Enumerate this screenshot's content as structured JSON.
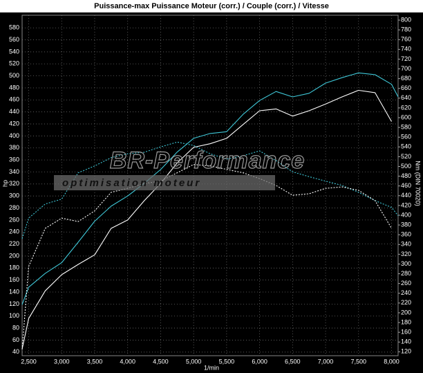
{
  "chart_data": {
    "type": "line",
    "title": "Puissance-max Puissance Moteur (corr.) / Couple (corr.) / Vitesse",
    "xlabel": "1/min",
    "ylabel": "hp",
    "y2label": "Nm (DIN 70020)",
    "annotations": [
      "BR-Performance",
      "optimisation moteur"
    ],
    "grid": true,
    "x": [
      2400,
      2500,
      2750,
      3000,
      3250,
      3500,
      3750,
      4000,
      4250,
      4500,
      4750,
      5000,
      5250,
      5500,
      5750,
      6000,
      6250,
      6500,
      6750,
      7000,
      7250,
      7500,
      7750,
      8000,
      8100
    ],
    "xlim": [
      2400,
      8100
    ],
    "xticks": [
      {
        "value": 2500,
        "label": "2,500"
      },
      {
        "value": 3000,
        "label": "3,000"
      },
      {
        "value": 3500,
        "label": "3,500"
      },
      {
        "value": 4000,
        "label": "4,000"
      },
      {
        "value": 4500,
        "label": "4,500"
      },
      {
        "value": 5000,
        "label": "5,000"
      },
      {
        "value": 5500,
        "label": "5,500"
      },
      {
        "value": 6000,
        "label": "6,000"
      },
      {
        "value": 6500,
        "label": "6,500"
      },
      {
        "value": 7000,
        "label": "7,000"
      },
      {
        "value": 7500,
        "label": "7,500"
      },
      {
        "value": 8000,
        "label": "8,000"
      }
    ],
    "ylim": [
      34,
      601
    ],
    "yticks": [
      40,
      60,
      80,
      100,
      120,
      140,
      160,
      180,
      200,
      220,
      240,
      260,
      280,
      300,
      320,
      340,
      360,
      380,
      400,
      420,
      440,
      460,
      480,
      500,
      520,
      540,
      560,
      580
    ],
    "y2lim": [
      112,
      810
    ],
    "y2ticks": [
      120,
      140,
      160,
      180,
      200,
      220,
      240,
      260,
      280,
      300,
      320,
      340,
      360,
      380,
      400,
      420,
      440,
      460,
      480,
      500,
      520,
      540,
      560,
      580,
      600,
      620,
      640,
      660,
      680,
      700,
      720,
      740,
      760,
      780,
      800
    ],
    "series": [
      {
        "color": "#3fc8d8",
        "dash": false,
        "values": [
          119,
          148,
          171,
          189,
          223,
          258,
          283,
          300,
          321,
          344,
          373,
          396,
          404,
          407,
          436,
          459,
          474,
          465,
          471,
          488,
          497,
          505,
          502,
          486,
          465
        ]
      },
      {
        "color": "#ffffff",
        "dash": false,
        "values": [
          45,
          96,
          142,
          169,
          186,
          202,
          246,
          260,
          292,
          321,
          355,
          381,
          387,
          396,
          419,
          442,
          445,
          433,
          442,
          453,
          465,
          476,
          472,
          424,
          null
        ]
      },
      {
        "color": "#3fc8d8",
        "dash": true,
        "axis": "y2",
        "values": [
          352,
          394,
          423,
          433,
          487,
          501,
          518,
          526,
          529,
          540,
          550,
          543,
          526,
          515,
          522,
          532,
          512,
          489,
          479,
          470,
          461,
          447,
          430,
          416,
          399
        ]
      },
      {
        "color": "#ffffff",
        "dash": true,
        "axis": "y2",
        "values": [
          125,
          295,
          373,
          394,
          387,
          409,
          447,
          455,
          465,
          470,
          487,
          504,
          501,
          494,
          487,
          475,
          461,
          441,
          444,
          455,
          458,
          451,
          430,
          373,
          null
        ]
      }
    ]
  }
}
